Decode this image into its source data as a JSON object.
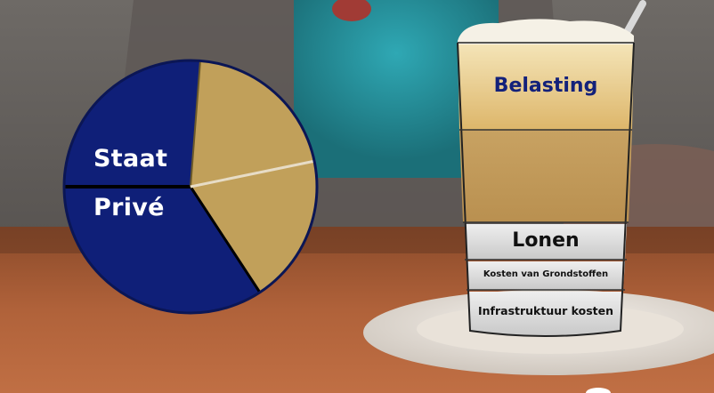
{
  "pie": {
    "labels": {
      "state": "Staat",
      "private": "Privé"
    },
    "colors": {
      "navy": "#0f1f78",
      "gold": "#c1a05a"
    }
  },
  "glass": {
    "layers": {
      "tax": "Belasting",
      "wages": "Lonen",
      "raw_materials": "Kosten van Grondstoffen",
      "infrastructure": "Infrastruktuur kosten"
    },
    "colors": {
      "foam": "#f2ead6",
      "crema": "#e8c77e",
      "coffee": "#c39e5a",
      "gray": "#d4d4d4",
      "label_blue": "#13217a"
    }
  }
}
